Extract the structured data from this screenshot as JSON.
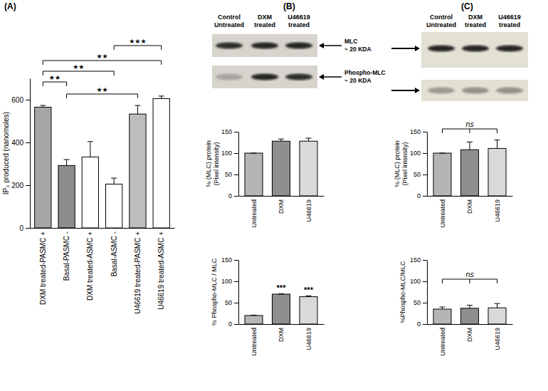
{
  "chart_data": [
    {
      "type": "bar",
      "y_label": [
        "IP₃ produced (nanomoles)"
      ],
      "categories": [
        "DXM treated-PASMC +",
        "Basal-PASMC -",
        "DXM treated-ASMC +",
        "Basal-ASMC -",
        "U46619 treated-PASMC +",
        "U46619 treated-ASMC +"
      ],
      "values": [
        565,
        292,
        332,
        205,
        533,
        605
      ],
      "errors": [
        8,
        28,
        72,
        28,
        40,
        12
      ],
      "colors": [
        "#a6a6a6",
        "#8c8c8c",
        "#ffffff",
        "#ffffff",
        "#bdbdbd",
        "#ffffff"
      ],
      "ylim": [
        0,
        700
      ],
      "yticks": [
        0,
        200,
        400,
        600
      ],
      "annotations": [
        {
          "from": 0,
          "to": 1,
          "label": "★★"
        },
        {
          "from": 0,
          "to": 3,
          "label": "★★"
        },
        {
          "from": 0,
          "to": 5,
          "label": "★★"
        },
        {
          "from": 1,
          "to": 4,
          "label": "★★"
        },
        {
          "from": 3,
          "to": 5,
          "label": "★★★"
        }
      ]
    },
    {
      "type": "bar",
      "y_label": [
        "% (MLC) protein",
        "(Pixel intensity)"
      ],
      "categories": [
        "Untreated",
        "DXM",
        "U46619"
      ],
      "values": [
        100,
        128,
        128
      ],
      "errors": [
        0,
        5,
        7
      ],
      "colors": [
        "#b5b5b5",
        "#8f8f8f",
        "#d9d9d9"
      ],
      "ylim": [
        0,
        150
      ],
      "yticks": [
        0,
        50,
        100,
        150
      ]
    },
    {
      "type": "bar",
      "y_label": [
        "% Phospho-MLC / MLC"
      ],
      "categories": [
        "Untreated",
        "DXM",
        "U46619"
      ],
      "values": [
        20,
        70,
        64
      ],
      "errors": [
        1,
        1,
        2
      ],
      "colors": [
        "#b5b5b5",
        "#8f8f8f",
        "#d9d9d9"
      ],
      "ylim": [
        0,
        150
      ],
      "yticks": [
        0,
        50,
        100,
        150
      ],
      "annotations": [
        {
          "at": 1,
          "label": "***"
        },
        {
          "at": 2,
          "label": "***"
        }
      ]
    },
    {
      "type": "bar",
      "y_label": [
        "% (MLC) protein",
        "(Pixel intensity)"
      ],
      "categories": [
        "Untreated",
        "DXM",
        "U46619"
      ],
      "values": [
        100,
        108,
        111
      ],
      "errors": [
        0,
        18,
        20
      ],
      "colors": [
        "#b5b5b5",
        "#8f8f8f",
        "#d9d9d9"
      ],
      "ylim": [
        0,
        150
      ],
      "yticks": [
        0,
        50,
        100,
        150
      ],
      "annotations": [
        {
          "from": 0,
          "to": 2,
          "label": "ns"
        }
      ]
    },
    {
      "type": "bar",
      "y_label": [
        "%Phospho-MLC/MLC"
      ],
      "categories": [
        "Untreated",
        "DXM",
        "U46619"
      ],
      "values": [
        35,
        37,
        38
      ],
      "errors": [
        5,
        7,
        10
      ],
      "colors": [
        "#b5b5b5",
        "#8f8f8f",
        "#d9d9d9"
      ],
      "ylim": [
        0,
        150
      ],
      "yticks": [
        0,
        50,
        100,
        150
      ],
      "annotations": [
        {
          "from": 0,
          "to": 2,
          "label": "ns"
        }
      ]
    }
  ],
  "figure": {
    "panels": [
      "(A)",
      "(B)",
      "(C)"
    ],
    "blots": [
      {
        "lanes": [
          [
            "Control",
            "Untreated"
          ],
          [
            "DXM",
            "treated"
          ],
          [
            "U46619",
            "treated"
          ]
        ],
        "bands": [
          [
            "MLC",
            "~ 20 KDA"
          ],
          [
            "Phospho-MLC",
            "~ 20 KDA"
          ]
        ]
      },
      {
        "lanes": [
          [
            "Control",
            "Untreated"
          ],
          [
            "DXM",
            "treated"
          ],
          [
            "U46619",
            "treated"
          ]
        ]
      }
    ]
  }
}
